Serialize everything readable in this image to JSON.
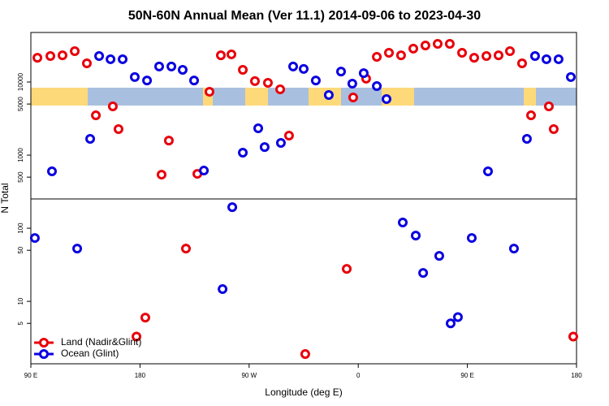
{
  "chart_data": {
    "type": "scatter",
    "title": "50N-60N Annual Mean (Ver 11.1)   2014-09-06 to 2023-04-30",
    "xlabel": "Longitude (deg E)",
    "ylabel": "N Total",
    "xlim": [
      90,
      540
    ],
    "xticks": [
      {
        "value": 90,
        "label": "90 E"
      },
      {
        "value": 180,
        "label": "180"
      },
      {
        "value": 270,
        "label": "90 W"
      },
      {
        "value": 360,
        "label": "0"
      },
      {
        "value": 450,
        "label": "90 E"
      },
      {
        "value": 540,
        "label": "180"
      }
    ],
    "ylim": [
      1.4,
      47600
    ],
    "log_y": true,
    "yticks": [
      5,
      10,
      50,
      100,
      500,
      1000,
      5000,
      10000
    ],
    "legend": "lower left",
    "series": [
      {
        "name": "Land (Nadir&Glint)",
        "color": "#e8000b",
        "x": [
          95.4,
          106.1,
          116.1,
          126.2,
          136.2,
          143.6,
          157.6,
          162.3,
          177.1,
          184.4,
          197.8,
          203.8,
          217.9,
          227.3,
          237.3,
          246.7,
          255.4,
          264.8,
          274.8,
          285.5,
          295.6,
          302.9,
          316.3,
          350.5,
          355.8,
          366.5,
          375.3,
          385.3,
          395.3,
          405.4,
          415.4,
          425.5,
          435.5,
          445.6,
          455.6,
          465.7,
          475.7,
          485.1,
          495.1,
          502.5,
          517.2,
          521.2,
          537.3
        ],
        "values": [
          21500,
          22700,
          23200,
          26400,
          18000,
          3500,
          4640,
          2270,
          3.3,
          6.0,
          541,
          1580,
          52.7,
          555,
          7360,
          23200,
          23900,
          14700,
          10300,
          9750,
          7940,
          1850,
          1.9,
          27.8,
          6150,
          11100,
          22100,
          25100,
          23200,
          28600,
          31600,
          33300,
          33300,
          25100,
          21500,
          22700,
          23200,
          26400,
          18000,
          3500,
          4640,
          2270,
          3.3
        ]
      },
      {
        "name": "Ocean (Glint)",
        "color": "#0a00e0",
        "x": [
          93.3,
          107.4,
          128.2,
          138.9,
          146.3,
          155.7,
          165.7,
          175.7,
          185.8,
          195.8,
          205.9,
          215.2,
          224.6,
          232.7,
          248.1,
          256.1,
          264.8,
          277.5,
          282.8,
          296.2,
          306.3,
          315.0,
          325.0,
          335.7,
          345.8,
          355.1,
          364.5,
          375.3,
          383.3,
          396.7,
          407.4,
          413.5,
          426.8,
          436.2,
          442.2,
          453.6,
          467.0,
          488.4,
          499.1,
          505.8,
          515.2,
          525.2,
          535.3
        ],
        "values": [
          73.6,
          600,
          52.7,
          1670,
          22700,
          20500,
          20500,
          11700,
          10500,
          16300,
          16300,
          14700,
          10500,
          615,
          14.7,
          194,
          1080,
          2330,
          1290,
          1470,
          16300,
          15100,
          10500,
          6640,
          13900,
          9500,
          13200,
          8800,
          5840,
          120,
          79.4,
          24.5,
          41.9,
          5.0,
          6.1,
          73.6,
          600,
          52.7,
          1670,
          22700,
          20500,
          20500,
          11700
        ]
      }
    ]
  }
}
